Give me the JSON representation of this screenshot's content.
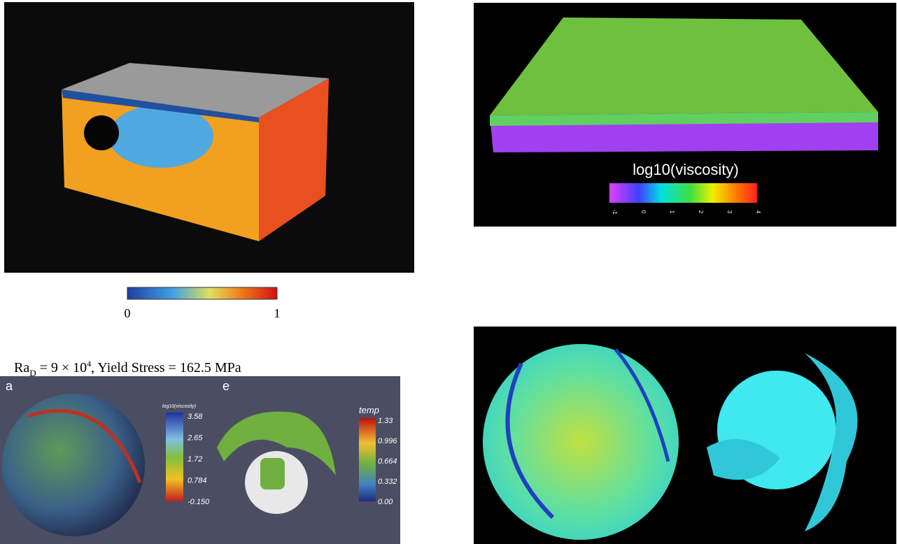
{
  "panels": [
    {
      "colorbar": {
        "min_label": "0",
        "max_label": "1"
      }
    },
    {
      "colorbar": {
        "title": "log10(viscosity)",
        "ticks": [
          "-1",
          "0",
          "1",
          "2",
          "3",
          "4"
        ]
      }
    },
    {
      "caption": {
        "base": "Ra",
        "sub": "D",
        "middle": " = 9 × 10",
        "sup": "4",
        "rest": ", Yield Stress = 162.5 MPa"
      },
      "subpanels": [
        {
          "letter": "a",
          "colorbar": {
            "title": "log10(viscosity)",
            "ticks": [
              "3.58",
              "2.65",
              "1.72",
              "0.784",
              "-0.150"
            ]
          }
        },
        {
          "letter": "e",
          "colorbar": {
            "title": "temp",
            "ticks": [
              "1.33",
              "0.996",
              "0.664",
              "0.332",
              "0.00"
            ]
          }
        }
      ]
    },
    {}
  ]
}
